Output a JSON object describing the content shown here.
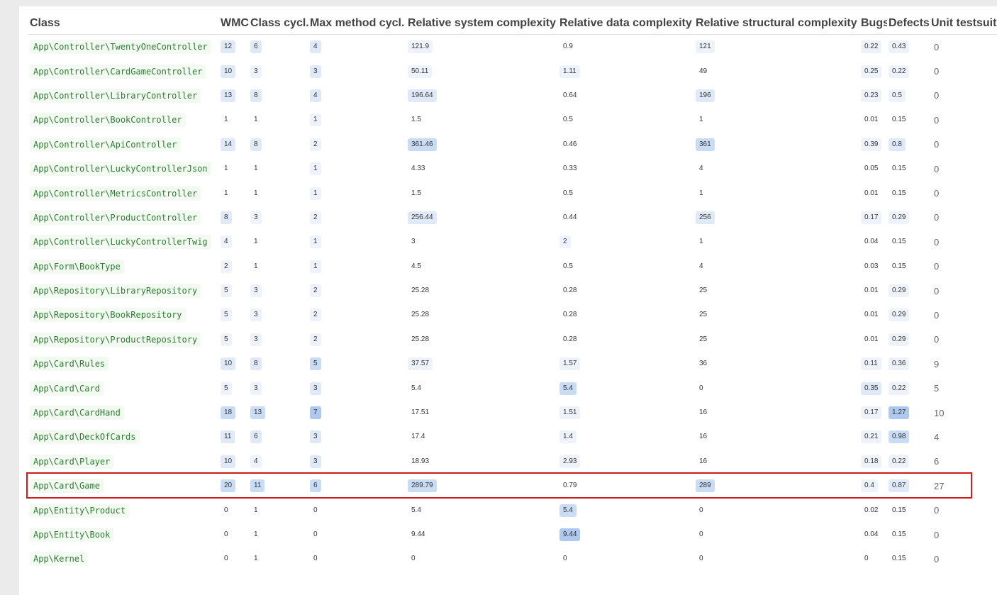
{
  "headers": {
    "class": "Class",
    "wmc": "WMC",
    "class_cycl": "Class cycl.",
    "max_method_cycl": "Max method cycl.",
    "rel_system": "Relative system complexity",
    "rel_data": "Relative data complexity",
    "rel_structural": "Relative structural complexity",
    "bugs": "Bugs",
    "defects": "Defects",
    "unit_testsuites": "Unit testsuite"
  },
  "highlight_color": "#d11a1a",
  "highlighted_class": "App\\Card\\Game",
  "rows": [
    {
      "cls": "App\\Controller\\TwentyOneController",
      "wmc": "12",
      "cc": "6",
      "mm": "4",
      "rs": "121.9",
      "rd": "0.9",
      "rst": "121",
      "bugs": "0.22",
      "def": "0.43",
      "ut": "0",
      "h": {
        "wmc": 2,
        "cc": 2,
        "mm": 2,
        "rs": 1,
        "rd": 0,
        "rst": 1,
        "bugs": 1,
        "def": 1
      }
    },
    {
      "cls": "App\\Controller\\CardGameController",
      "wmc": "10",
      "cc": "3",
      "mm": "3",
      "rs": "50.11",
      "rd": "1.11",
      "rst": "49",
      "bugs": "0.25",
      "def": "0.22",
      "ut": "0",
      "h": {
        "wmc": 2,
        "cc": 1,
        "mm": 2,
        "rs": 1,
        "rd": 1,
        "rst": 0,
        "bugs": 1,
        "def": 1
      }
    },
    {
      "cls": "App\\Controller\\LibraryController",
      "wmc": "13",
      "cc": "8",
      "mm": "4",
      "rs": "196.64",
      "rd": "0.64",
      "rst": "196",
      "bugs": "0.23",
      "def": "0.5",
      "ut": "0",
      "h": {
        "wmc": 2,
        "cc": 2,
        "mm": 2,
        "rs": 2,
        "rd": 0,
        "rst": 2,
        "bugs": 1,
        "def": 1
      }
    },
    {
      "cls": "App\\Controller\\BookController",
      "wmc": "1",
      "cc": "1",
      "mm": "1",
      "rs": "1.5",
      "rd": "0.5",
      "rst": "1",
      "bugs": "0.01",
      "def": "0.15",
      "ut": "0",
      "h": {
        "wmc": 0,
        "cc": 0,
        "mm": 1,
        "rs": 0,
        "rd": 0,
        "rst": 0,
        "bugs": 0,
        "def": 0
      }
    },
    {
      "cls": "App\\Controller\\ApiController",
      "wmc": "14",
      "cc": "8",
      "mm": "2",
      "rs": "361.46",
      "rd": "0.46",
      "rst": "361",
      "bugs": "0.39",
      "def": "0.8",
      "ut": "0",
      "h": {
        "wmc": 2,
        "cc": 2,
        "mm": 1,
        "rs": 3,
        "rd": 0,
        "rst": 3,
        "bugs": 1,
        "def": 2
      }
    },
    {
      "cls": "App\\Controller\\LuckyControllerJson",
      "wmc": "1",
      "cc": "1",
      "mm": "1",
      "rs": "4.33",
      "rd": "0.33",
      "rst": "4",
      "bugs": "0.05",
      "def": "0.15",
      "ut": "0",
      "h": {
        "wmc": 0,
        "cc": 0,
        "mm": 1,
        "rs": 0,
        "rd": 0,
        "rst": 0,
        "bugs": 0,
        "def": 0
      }
    },
    {
      "cls": "App\\Controller\\MetricsController",
      "wmc": "1",
      "cc": "1",
      "mm": "1",
      "rs": "1.5",
      "rd": "0.5",
      "rst": "1",
      "bugs": "0.01",
      "def": "0.15",
      "ut": "0",
      "h": {
        "wmc": 0,
        "cc": 0,
        "mm": 1,
        "rs": 0,
        "rd": 0,
        "rst": 0,
        "bugs": 0,
        "def": 0
      }
    },
    {
      "cls": "App\\Controller\\ProductController",
      "wmc": "8",
      "cc": "3",
      "mm": "2",
      "rs": "256.44",
      "rd": "0.44",
      "rst": "256",
      "bugs": "0.17",
      "def": "0.29",
      "ut": "0",
      "h": {
        "wmc": 2,
        "cc": 1,
        "mm": 1,
        "rs": 2,
        "rd": 0,
        "rst": 2,
        "bugs": 1,
        "def": 1
      }
    },
    {
      "cls": "App\\Controller\\LuckyControllerTwig",
      "wmc": "4",
      "cc": "1",
      "mm": "1",
      "rs": "3",
      "rd": "2",
      "rst": "1",
      "bugs": "0.04",
      "def": "0.15",
      "ut": "0",
      "h": {
        "wmc": 1,
        "cc": 0,
        "mm": 1,
        "rs": 0,
        "rd": 1,
        "rst": 0,
        "bugs": 0,
        "def": 0
      }
    },
    {
      "cls": "App\\Form\\BookType",
      "wmc": "2",
      "cc": "1",
      "mm": "1",
      "rs": "4.5",
      "rd": "0.5",
      "rst": "4",
      "bugs": "0.03",
      "def": "0.15",
      "ut": "0",
      "h": {
        "wmc": 1,
        "cc": 0,
        "mm": 1,
        "rs": 0,
        "rd": 0,
        "rst": 0,
        "bugs": 0,
        "def": 0
      }
    },
    {
      "cls": "App\\Repository\\LibraryRepository",
      "wmc": "5",
      "cc": "3",
      "mm": "2",
      "rs": "25.28",
      "rd": "0.28",
      "rst": "25",
      "bugs": "0.01",
      "def": "0.29",
      "ut": "0",
      "h": {
        "wmc": 1,
        "cc": 1,
        "mm": 1,
        "rs": 0,
        "rd": 0,
        "rst": 0,
        "bugs": 0,
        "def": 1
      }
    },
    {
      "cls": "App\\Repository\\BookRepository",
      "wmc": "5",
      "cc": "3",
      "mm": "2",
      "rs": "25.28",
      "rd": "0.28",
      "rst": "25",
      "bugs": "0.01",
      "def": "0.29",
      "ut": "0",
      "h": {
        "wmc": 1,
        "cc": 1,
        "mm": 1,
        "rs": 0,
        "rd": 0,
        "rst": 0,
        "bugs": 0,
        "def": 1
      }
    },
    {
      "cls": "App\\Repository\\ProductRepository",
      "wmc": "5",
      "cc": "3",
      "mm": "2",
      "rs": "25.28",
      "rd": "0.28",
      "rst": "25",
      "bugs": "0.01",
      "def": "0.29",
      "ut": "0",
      "h": {
        "wmc": 1,
        "cc": 1,
        "mm": 1,
        "rs": 0,
        "rd": 0,
        "rst": 0,
        "bugs": 0,
        "def": 1
      }
    },
    {
      "cls": "App\\Card\\Rules",
      "wmc": "10",
      "cc": "8",
      "mm": "5",
      "rs": "37.57",
      "rd": "1.57",
      "rst": "36",
      "bugs": "0.11",
      "def": "0.36",
      "ut": "9",
      "h": {
        "wmc": 2,
        "cc": 2,
        "mm": 3,
        "rs": 1,
        "rd": 1,
        "rst": 0,
        "bugs": 1,
        "def": 1
      }
    },
    {
      "cls": "App\\Card\\Card",
      "wmc": "5",
      "cc": "3",
      "mm": "3",
      "rs": "5.4",
      "rd": "5.4",
      "rst": "0",
      "bugs": "0.35",
      "def": "0.22",
      "ut": "5",
      "h": {
        "wmc": 1,
        "cc": 1,
        "mm": 2,
        "rs": 0,
        "rd": 3,
        "rst": 0,
        "bugs": 2,
        "def": 1
      }
    },
    {
      "cls": "App\\Card\\CardHand",
      "wmc": "18",
      "cc": "13",
      "mm": "7",
      "rs": "17.51",
      "rd": "1.51",
      "rst": "16",
      "bugs": "0.17",
      "def": "1.27",
      "ut": "10",
      "h": {
        "wmc": 3,
        "cc": 3,
        "mm": 4,
        "rs": 0,
        "rd": 1,
        "rst": 0,
        "bugs": 1,
        "def": 4
      }
    },
    {
      "cls": "App\\Card\\DeckOfCards",
      "wmc": "11",
      "cc": "6",
      "mm": "3",
      "rs": "17.4",
      "rd": "1.4",
      "rst": "16",
      "bugs": "0.21",
      "def": "0.98",
      "ut": "4",
      "h": {
        "wmc": 2,
        "cc": 2,
        "mm": 2,
        "rs": 0,
        "rd": 1,
        "rst": 0,
        "bugs": 1,
        "def": 3
      }
    },
    {
      "cls": "App\\Card\\Player",
      "wmc": "10",
      "cc": "4",
      "mm": "3",
      "rs": "18.93",
      "rd": "2.93",
      "rst": "16",
      "bugs": "0.18",
      "def": "0.22",
      "ut": "6",
      "h": {
        "wmc": 2,
        "cc": 1,
        "mm": 2,
        "rs": 0,
        "rd": 1,
        "rst": 0,
        "bugs": 1,
        "def": 1
      }
    },
    {
      "cls": "App\\Card\\Game",
      "wmc": "20",
      "cc": "11",
      "mm": "6",
      "rs": "289.79",
      "rd": "0.79",
      "rst": "289",
      "bugs": "0.4",
      "def": "0.87",
      "ut": "27",
      "h": {
        "wmc": 3,
        "cc": 3,
        "mm": 3,
        "rs": 3,
        "rd": 0,
        "rst": 3,
        "bugs": 1,
        "def": 2
      }
    },
    {
      "cls": "App\\Entity\\Product",
      "wmc": "0",
      "cc": "1",
      "mm": "0",
      "rs": "5.4",
      "rd": "5.4",
      "rst": "0",
      "bugs": "0.02",
      "def": "0.15",
      "ut": "0",
      "h": {
        "wmc": 0,
        "cc": 0,
        "mm": 0,
        "rs": 0,
        "rd": 3,
        "rst": 0,
        "bugs": 0,
        "def": 0
      }
    },
    {
      "cls": "App\\Entity\\Book",
      "wmc": "0",
      "cc": "1",
      "mm": "0",
      "rs": "9.44",
      "rd": "9.44",
      "rst": "0",
      "bugs": "0.04",
      "def": "0.15",
      "ut": "0",
      "h": {
        "wmc": 0,
        "cc": 0,
        "mm": 0,
        "rs": 0,
        "rd": 4,
        "rst": 0,
        "bugs": 0,
        "def": 0
      }
    },
    {
      "cls": "App\\Kernel",
      "wmc": "0",
      "cc": "1",
      "mm": "0",
      "rs": "0",
      "rd": "0",
      "rst": "0",
      "bugs": "0",
      "def": "0.15",
      "ut": "0",
      "h": {
        "wmc": 0,
        "cc": 0,
        "mm": 0,
        "rs": 0,
        "rd": 0,
        "rst": 0,
        "bugs": 0,
        "def": 0
      }
    }
  ]
}
